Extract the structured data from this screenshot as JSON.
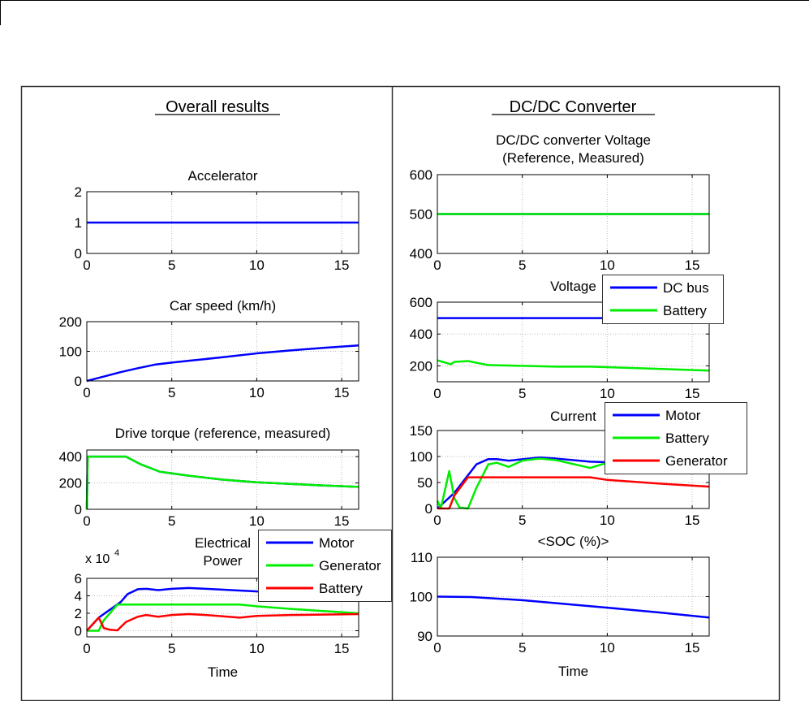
{
  "panels": {
    "left_title": "Overall results",
    "right_title": "DC/DC Converter"
  },
  "chart_data": [
    {
      "type": "line",
      "panel": "left",
      "title": [
        "Accelerator"
      ],
      "xlabel": "",
      "xlim": [
        0,
        16
      ],
      "ylim": [
        0,
        2
      ],
      "xticks": [
        0,
        5,
        10,
        15
      ],
      "yticks": [
        0,
        1,
        2
      ],
      "grid": true,
      "exponent": "",
      "series": [
        {
          "color": "#0000ff",
          "x": [
            0,
            16
          ],
          "y": [
            1,
            1
          ]
        }
      ],
      "legend": []
    },
    {
      "type": "line",
      "panel": "left",
      "title": [
        "Car speed (km/h)"
      ],
      "xlabel": "",
      "xlim": [
        0,
        16
      ],
      "ylim": [
        0,
        200
      ],
      "xticks": [
        0,
        5,
        10,
        15
      ],
      "yticks": [
        0,
        100,
        200
      ],
      "grid": true,
      "exponent": "",
      "series": [
        {
          "color": "#0000ff",
          "x": [
            0,
            1,
            2,
            3,
            4,
            5,
            6,
            8,
            10,
            12,
            14,
            16
          ],
          "y": [
            0,
            15,
            30,
            43,
            55,
            62,
            68,
            80,
            93,
            103,
            112,
            120
          ]
        }
      ],
      "legend": []
    },
    {
      "type": "line",
      "panel": "left",
      "title": [
        "Drive torque (reference, measured)"
      ],
      "xlabel": "",
      "xlim": [
        0,
        16
      ],
      "ylim": [
        0,
        450
      ],
      "xticks": [
        0,
        5,
        10,
        15
      ],
      "yticks": [
        0,
        200,
        400
      ],
      "grid": true,
      "exponent": "",
      "series": [
        {
          "color": "#0000ff",
          "x": [
            0,
            0.05,
            2.3,
            3.2,
            4.3,
            6,
            8,
            10,
            12,
            14,
            16
          ],
          "y": [
            0,
            400,
            400,
            340,
            285,
            255,
            225,
            205,
            193,
            180,
            170
          ]
        },
        {
          "color": "#00ee00",
          "x": [
            0,
            0.05,
            2.3,
            3.2,
            4.3,
            6,
            8,
            10,
            12,
            14,
            16
          ],
          "y": [
            0,
            400,
            400,
            340,
            285,
            255,
            225,
            205,
            193,
            180,
            170
          ]
        }
      ],
      "legend": []
    },
    {
      "type": "line",
      "panel": "left",
      "title": [
        "Electrical",
        "Power"
      ],
      "xlabel": "Time",
      "xlim": [
        0,
        16
      ],
      "ylim": [
        -0.7,
        6
      ],
      "xticks": [
        0,
        5,
        10,
        15
      ],
      "yticks": [
        0,
        2,
        4,
        6
      ],
      "grid": true,
      "exponent": "x 10",
      "exponent_power": "4",
      "series": [
        {
          "name": "Motor",
          "color": "#0000ff",
          "x": [
            0,
            0.7,
            1.5,
            2,
            2.4,
            3,
            3.5,
            4.2,
            5,
            6,
            7,
            9,
            12,
            16
          ],
          "y": [
            0,
            1.5,
            2.6,
            3.3,
            4.2,
            4.75,
            4.8,
            4.65,
            4.8,
            4.9,
            4.8,
            4.6,
            4.3,
            3.9
          ]
        },
        {
          "name": "Generator",
          "color": "#00ee00",
          "x": [
            0,
            0.7,
            1,
            1.8,
            9,
            10,
            12,
            16
          ],
          "y": [
            0,
            0,
            1.2,
            3,
            3,
            2.8,
            2.5,
            2.0
          ]
        },
        {
          "name": "Battery",
          "color": "#ff0000",
          "x": [
            0,
            0.7,
            1,
            1.4,
            1.8,
            2.3,
            3,
            3.5,
            4.2,
            5,
            6,
            7,
            9,
            10,
            12,
            16
          ],
          "y": [
            0,
            1.5,
            0.3,
            0.1,
            0.05,
            1,
            1.6,
            1.8,
            1.6,
            1.8,
            1.9,
            1.8,
            1.5,
            1.7,
            1.8,
            1.9
          ]
        }
      ],
      "legend": [
        "Motor",
        "Generator",
        "Battery"
      ]
    },
    {
      "type": "line",
      "panel": "right",
      "title": [
        "DC/DC converter Voltage",
        "(Reference, Measured)"
      ],
      "xlabel": "",
      "xlim": [
        0,
        16
      ],
      "ylim": [
        400,
        600
      ],
      "xticks": [
        0,
        5,
        10,
        15
      ],
      "yticks": [
        400,
        500,
        600
      ],
      "grid": true,
      "exponent": "",
      "series": [
        {
          "color": "#0000ff",
          "x": [
            0,
            16
          ],
          "y": [
            500,
            500
          ]
        },
        {
          "color": "#00ee00",
          "x": [
            0,
            16
          ],
          "y": [
            500,
            500
          ]
        }
      ],
      "legend": []
    },
    {
      "type": "line",
      "panel": "right",
      "title": [
        "Voltage"
      ],
      "xlabel": "",
      "xlim": [
        0,
        16
      ],
      "ylim": [
        100,
        600
      ],
      "xticks": [
        0,
        5,
        10,
        15
      ],
      "yticks": [
        200,
        400,
        600
      ],
      "grid": true,
      "exponent": "",
      "series": [
        {
          "name": "DC bus",
          "color": "#0000ff",
          "x": [
            0,
            16
          ],
          "y": [
            500,
            500
          ]
        },
        {
          "name": "Battery",
          "color": "#00ee00",
          "x": [
            0,
            0.8,
            1,
            1.8,
            2.5,
            3,
            5,
            7,
            9,
            12,
            16
          ],
          "y": [
            235,
            210,
            225,
            230,
            215,
            205,
            200,
            195,
            195,
            185,
            170
          ]
        }
      ],
      "legend": [
        "DC bus",
        "Battery"
      ]
    },
    {
      "type": "line",
      "panel": "right",
      "title": [
        "Current"
      ],
      "xlabel": "",
      "xlim": [
        0,
        16
      ],
      "ylim": [
        0,
        150
      ],
      "xticks": [
        0,
        5,
        10,
        15
      ],
      "yticks": [
        0,
        50,
        100,
        150
      ],
      "grid": true,
      "exponent": "",
      "series": [
        {
          "name": "Motor",
          "color": "#0000ff",
          "x": [
            0,
            1,
            2.3,
            3,
            3.5,
            4.2,
            6,
            7,
            9,
            12,
            16
          ],
          "y": [
            0,
            30,
            85,
            95,
            95,
            92,
            98,
            96,
            90,
            87,
            79
          ]
        },
        {
          "name": "Battery",
          "color": "#00ee00",
          "x": [
            0,
            0.2,
            0.7,
            1,
            1.3,
            1.8,
            2.3,
            3,
            3.5,
            4.2,
            5,
            6,
            7,
            9,
            10,
            13,
            16
          ],
          "y": [
            15,
            0,
            72,
            20,
            2,
            0,
            40,
            85,
            88,
            80,
            92,
            96,
            93,
            78,
            88,
            98,
            110
          ]
        },
        {
          "name": "Generator",
          "color": "#ff0000",
          "x": [
            0,
            0.7,
            1,
            1.8,
            9,
            10,
            13,
            16
          ],
          "y": [
            0,
            0,
            25,
            60,
            60,
            55,
            48,
            42
          ]
        }
      ],
      "legend": [
        "Motor",
        "Battery",
        "Generator"
      ]
    },
    {
      "type": "line",
      "panel": "right",
      "title": [
        "<SOC (%)>"
      ],
      "xlabel": "Time",
      "xlim": [
        0,
        16
      ],
      "ylim": [
        90,
        110
      ],
      "xticks": [
        0,
        5,
        10,
        15
      ],
      "yticks": [
        90,
        100,
        110
      ],
      "grid": true,
      "exponent": "",
      "series": [
        {
          "color": "#0000ff",
          "x": [
            0,
            2,
            5,
            10,
            13,
            16
          ],
          "y": [
            100,
            99.9,
            99.1,
            97.2,
            96,
            94.7
          ]
        }
      ],
      "legend": []
    }
  ]
}
